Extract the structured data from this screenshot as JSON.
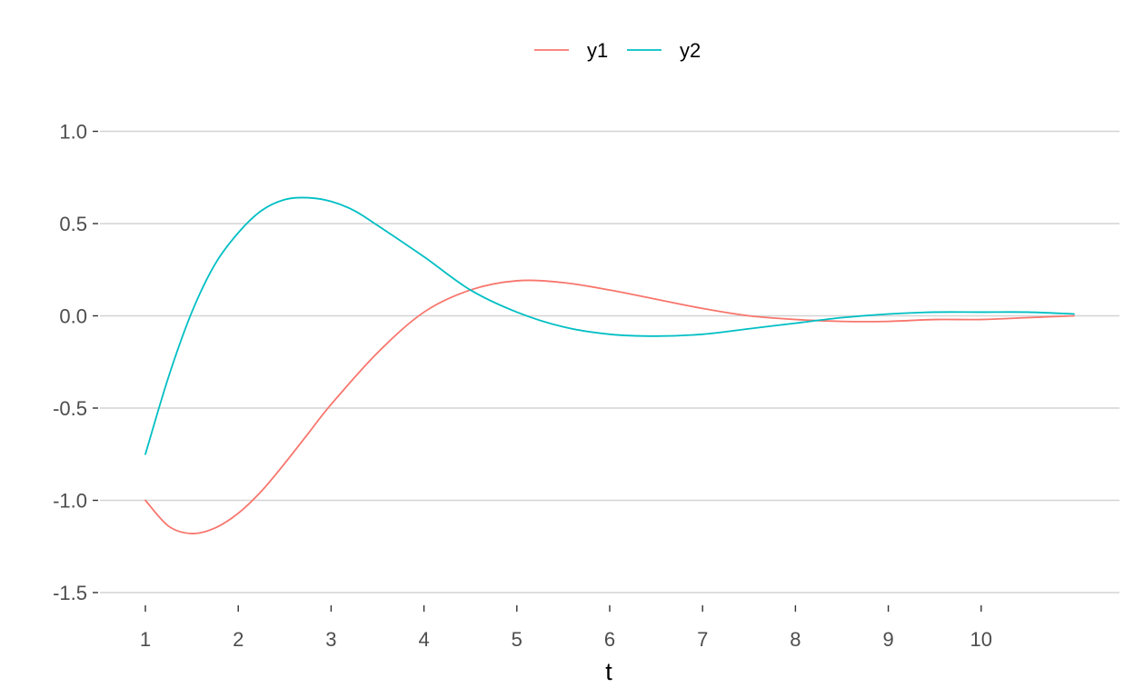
{
  "chart_data": {
    "type": "line",
    "title": "",
    "xlabel": "t",
    "ylabel": "",
    "xlim": [
      1,
      11
    ],
    "ylim": [
      -1.5,
      1.0
    ],
    "x_ticks": [
      1,
      2,
      3,
      4,
      5,
      6,
      7,
      8,
      9,
      10
    ],
    "y_ticks": [
      1.0,
      0.5,
      0.0,
      -0.5,
      -1.0,
      -1.5
    ],
    "y_tick_labels": [
      "1.0",
      "0.5",
      "0.0",
      "-0.5",
      "-1.0",
      "-1.5"
    ],
    "grid": "horizontal major",
    "legend_position": "top",
    "series": [
      {
        "name": "y1",
        "color": "#F8766D",
        "x": [
          1,
          1.25,
          1.5,
          1.75,
          2,
          2.25,
          2.5,
          2.75,
          3,
          3.5,
          4,
          4.5,
          5,
          5.5,
          6,
          6.5,
          7,
          7.5,
          8,
          8.5,
          9,
          9.5,
          10,
          10.5,
          11
        ],
        "y": [
          -1.0,
          -1.14,
          -1.18,
          -1.15,
          -1.07,
          -0.95,
          -0.8,
          -0.64,
          -0.48,
          -0.2,
          0.02,
          0.14,
          0.19,
          0.18,
          0.14,
          0.09,
          0.04,
          0.0,
          -0.02,
          -0.03,
          -0.03,
          -0.02,
          -0.02,
          -0.01,
          0.0
        ]
      },
      {
        "name": "y2",
        "color": "#00BFC4",
        "x": [
          1,
          1.25,
          1.5,
          1.75,
          2,
          2.25,
          2.5,
          2.75,
          3,
          3.25,
          3.5,
          4,
          4.5,
          5,
          5.5,
          6,
          6.5,
          7,
          7.5,
          8,
          8.5,
          9,
          9.5,
          10,
          10.5,
          11
        ],
        "y": [
          -0.75,
          -0.33,
          0.02,
          0.28,
          0.45,
          0.57,
          0.63,
          0.64,
          0.62,
          0.57,
          0.49,
          0.32,
          0.14,
          0.02,
          -0.06,
          -0.1,
          -0.11,
          -0.1,
          -0.07,
          -0.04,
          -0.01,
          0.01,
          0.02,
          0.02,
          0.02,
          0.01
        ]
      }
    ]
  }
}
